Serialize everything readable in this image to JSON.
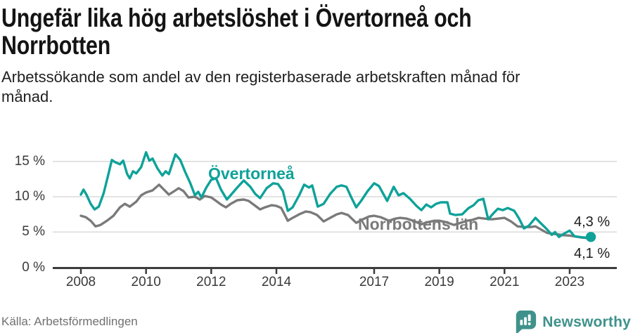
{
  "header": {
    "title_lines": [
      "Ungefär lika hög arbetslöshet i Övertorneå och",
      "Norrbotten"
    ],
    "subtitle_lines": [
      "Arbetssökande som andel av den registerbaserade arbetskraften månad för",
      "månad."
    ]
  },
  "footer": {
    "source": "Källa: Arbetsförmedlingen",
    "brand": "Newsworthy"
  },
  "colors": {
    "overtornea_teal": "#0ea299",
    "norrbotten_gray": "#7a7a7a",
    "grid": "#dadada",
    "axis": "#3c3c3c",
    "brand_teal": "#3f928b",
    "end_label_text": "#1c1c1c"
  },
  "chart_data": {
    "type": "line",
    "title": "Ungefär lika hög arbetslöshet i Övertorneå och Norrbotten",
    "subtitle": "Arbetssökande som andel av den registerbaserade arbetskraften månad för månad.",
    "xlabel": "",
    "ylabel": "",
    "unit": "%",
    "grid": "horizontal",
    "legend_position": "inline-labels",
    "xlim": [
      2007.15,
      2024.4
    ],
    "ylim": [
      0,
      17
    ],
    "yticks": {
      "values": [
        0,
        5,
        10,
        15
      ],
      "labels": [
        "0 %",
        "5 %",
        "10 %",
        "15 %"
      ]
    },
    "xticks": {
      "values": [
        2008,
        2010,
        2012,
        2014,
        2017,
        2019,
        2021,
        2023
      ],
      "labels": [
        "2008",
        "2010",
        "2012",
        "2014",
        "2017",
        "2019",
        "2021",
        "2023"
      ]
    },
    "series": [
      {
        "name": "Norrbottens län",
        "color": "#7a7a7a",
        "end_label": "4,1 %",
        "end_dot": false,
        "x": [
          2008.0,
          2008.15,
          2008.3,
          2008.45,
          2008.6,
          2008.8,
          2009.0,
          2009.2,
          2009.35,
          2009.5,
          2009.7,
          2009.85,
          2010.0,
          2010.2,
          2010.4,
          2010.55,
          2010.7,
          2010.9,
          2011.0,
          2011.15,
          2011.3,
          2011.5,
          2011.65,
          2011.8,
          2012.0,
          2012.15,
          2012.3,
          2012.45,
          2012.6,
          2012.8,
          2013.0,
          2013.15,
          2013.3,
          2013.5,
          2013.65,
          2013.85,
          2014.0,
          2014.15,
          2014.35,
          2014.5,
          2014.7,
          2014.9,
          2015.05,
          2015.25,
          2015.45,
          2015.65,
          2015.85,
          2016.0,
          2016.2,
          2016.45,
          2016.65,
          2016.85,
          2017.0,
          2017.2,
          2017.45,
          2017.65,
          2017.8,
          2018.0,
          2018.2,
          2018.45,
          2018.65,
          2018.85,
          2019.0,
          2019.2,
          2019.45,
          2019.65,
          2019.85,
          2020.0,
          2020.2,
          2020.4,
          2020.6,
          2020.8,
          2021.0,
          2021.2,
          2021.4,
          2021.6,
          2021.8,
          2021.95,
          2022.1,
          2022.3,
          2022.45,
          2022.6,
          2022.8,
          2023.0,
          2023.2,
          2023.4,
          2023.65
        ],
        "y": [
          7.3,
          7.1,
          6.6,
          5.8,
          6.0,
          6.6,
          7.3,
          8.5,
          9.0,
          8.6,
          9.3,
          10.2,
          10.6,
          10.9,
          11.7,
          11.0,
          10.3,
          10.9,
          11.2,
          10.8,
          9.9,
          10.0,
          9.6,
          10.1,
          9.9,
          9.4,
          8.9,
          8.5,
          9.0,
          9.5,
          9.6,
          9.4,
          8.9,
          8.2,
          8.5,
          8.8,
          8.7,
          8.4,
          6.6,
          7.0,
          7.5,
          7.9,
          7.8,
          7.4,
          6.5,
          7.0,
          7.5,
          7.7,
          7.4,
          6.3,
          6.8,
          7.2,
          7.3,
          7.1,
          6.6,
          6.9,
          7.0,
          6.9,
          6.6,
          6.1,
          6.4,
          6.6,
          6.6,
          6.4,
          6.0,
          6.3,
          6.6,
          6.7,
          7.0,
          6.9,
          6.8,
          6.9,
          7.0,
          6.5,
          5.8,
          5.7,
          5.7,
          5.8,
          5.4,
          4.9,
          4.75,
          4.7,
          4.55,
          4.5,
          4.35,
          4.2,
          4.1
        ]
      },
      {
        "name": "Övertorneå",
        "color": "#0ea299",
        "end_label": "4,3 %",
        "end_dot": true,
        "x": [
          2008.0,
          2008.08,
          2008.17,
          2008.3,
          2008.42,
          2008.55,
          2008.7,
          2008.85,
          2008.95,
          2009.05,
          2009.2,
          2009.3,
          2009.42,
          2009.5,
          2009.6,
          2009.7,
          2009.85,
          2010.0,
          2010.1,
          2010.2,
          2010.35,
          2010.5,
          2010.6,
          2010.7,
          2010.9,
          2011.05,
          2011.2,
          2011.35,
          2011.5,
          2011.6,
          2011.7,
          2011.85,
          2012.0,
          2012.15,
          2012.3,
          2012.48,
          2012.65,
          2012.8,
          2013.0,
          2013.2,
          2013.35,
          2013.5,
          2013.7,
          2013.9,
          2014.05,
          2014.2,
          2014.35,
          2014.5,
          2014.7,
          2014.85,
          2015.0,
          2015.1,
          2015.27,
          2015.45,
          2015.65,
          2015.85,
          2016.0,
          2016.15,
          2016.3,
          2016.45,
          2016.6,
          2016.8,
          2017.0,
          2017.15,
          2017.4,
          2017.6,
          2017.75,
          2017.9,
          2018.1,
          2018.3,
          2018.45,
          2018.6,
          2018.75,
          2018.9,
          2019.05,
          2019.25,
          2019.33,
          2019.5,
          2019.7,
          2019.9,
          2020.05,
          2020.2,
          2020.35,
          2020.5,
          2020.65,
          2020.8,
          2020.95,
          2021.1,
          2021.3,
          2021.45,
          2021.6,
          2021.75,
          2021.95,
          2022.1,
          2022.3,
          2022.45,
          2022.55,
          2022.67,
          2022.8,
          2023.0,
          2023.15,
          2023.3,
          2023.5,
          2023.65
        ],
        "y": [
          10.3,
          11.0,
          10.3,
          9.0,
          8.2,
          8.6,
          10.5,
          13.3,
          15.2,
          14.9,
          14.6,
          15.1,
          13.2,
          12.6,
          13.6,
          13.3,
          14.2,
          16.3,
          15.1,
          15.4,
          14.0,
          13.0,
          13.6,
          13.2,
          16.0,
          15.2,
          13.5,
          12.0,
          10.2,
          10.7,
          9.9,
          11.3,
          12.4,
          12.6,
          11.0,
          9.6,
          10.5,
          11.3,
          12.3,
          11.4,
          10.4,
          9.8,
          11.2,
          11.9,
          11.8,
          10.8,
          8.0,
          8.5,
          10.2,
          11.7,
          11.3,
          11.6,
          8.6,
          9.0,
          10.4,
          11.4,
          11.6,
          11.4,
          9.9,
          8.5,
          9.4,
          10.8,
          11.9,
          11.5,
          9.4,
          11.4,
          10.2,
          10.5,
          9.7,
          8.7,
          8.1,
          8.9,
          8.5,
          9.0,
          9.2,
          9.2,
          7.6,
          7.4,
          7.5,
          8.4,
          8.8,
          9.5,
          9.7,
          6.8,
          7.6,
          8.3,
          8.1,
          8.4,
          8.0,
          6.9,
          5.5,
          5.9,
          7.0,
          6.3,
          5.4,
          4.6,
          5.0,
          4.3,
          4.7,
          5.2,
          4.4,
          4.3,
          4.2,
          4.3
        ]
      }
    ]
  }
}
